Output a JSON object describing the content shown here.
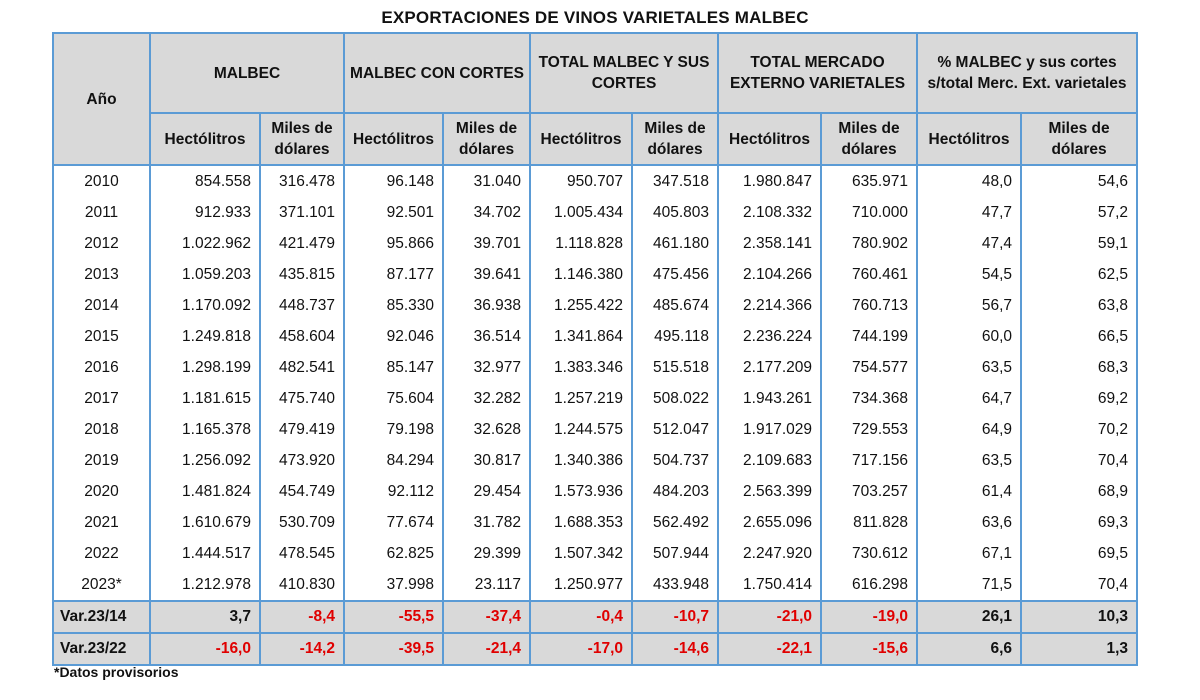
{
  "title": "EXPORTACIONES DE VINOS VARIETALES MALBEC",
  "headers": {
    "year": "Año",
    "groups": [
      "MALBEC",
      "MALBEC CON CORTES",
      "TOTAL MALBEC Y SUS CORTES",
      "TOTAL MERCADO EXTERNO VARIETALES",
      "% MALBEC y sus cortes s/total Merc. Ext. varietales"
    ],
    "sub": [
      "Hectólitros",
      "Miles de dólares",
      "Hectólitros",
      "Miles de dólares",
      "Hectólitros",
      "Miles de dólares",
      "Hectólitros",
      "Miles de dólares",
      "Hectólitros",
      "Miles de dólares"
    ]
  },
  "rows": [
    {
      "year": "2010",
      "values": [
        "854.558",
        "316.478",
        "96.148",
        "31.040",
        "950.707",
        "347.518",
        "1.980.847",
        "635.971",
        "48,0",
        "54,6"
      ]
    },
    {
      "year": "2011",
      "values": [
        "912.933",
        "371.101",
        "92.501",
        "34.702",
        "1.005.434",
        "405.803",
        "2.108.332",
        "710.000",
        "47,7",
        "57,2"
      ]
    },
    {
      "year": "2012",
      "values": [
        "1.022.962",
        "421.479",
        "95.866",
        "39.701",
        "1.118.828",
        "461.180",
        "2.358.141",
        "780.902",
        "47,4",
        "59,1"
      ]
    },
    {
      "year": "2013",
      "values": [
        "1.059.203",
        "435.815",
        "87.177",
        "39.641",
        "1.146.380",
        "475.456",
        "2.104.266",
        "760.461",
        "54,5",
        "62,5"
      ]
    },
    {
      "year": "2014",
      "values": [
        "1.170.092",
        "448.737",
        "85.330",
        "36.938",
        "1.255.422",
        "485.674",
        "2.214.366",
        "760.713",
        "56,7",
        "63,8"
      ]
    },
    {
      "year": "2015",
      "values": [
        "1.249.818",
        "458.604",
        "92.046",
        "36.514",
        "1.341.864",
        "495.118",
        "2.236.224",
        "744.199",
        "60,0",
        "66,5"
      ]
    },
    {
      "year": "2016",
      "values": [
        "1.298.199",
        "482.541",
        "85.147",
        "32.977",
        "1.383.346",
        "515.518",
        "2.177.209",
        "754.577",
        "63,5",
        "68,3"
      ]
    },
    {
      "year": "2017",
      "values": [
        "1.181.615",
        "475.740",
        "75.604",
        "32.282",
        "1.257.219",
        "508.022",
        "1.943.261",
        "734.368",
        "64,7",
        "69,2"
      ]
    },
    {
      "year": "2018",
      "values": [
        "1.165.378",
        "479.419",
        "79.198",
        "32.628",
        "1.244.575",
        "512.047",
        "1.917.029",
        "729.553",
        "64,9",
        "70,2"
      ]
    },
    {
      "year": "2019",
      "values": [
        "1.256.092",
        "473.920",
        "84.294",
        "30.817",
        "1.340.386",
        "504.737",
        "2.109.683",
        "717.156",
        "63,5",
        "70,4"
      ]
    },
    {
      "year": "2020",
      "values": [
        "1.481.824",
        "454.749",
        "92.112",
        "29.454",
        "1.573.936",
        "484.203",
        "2.563.399",
        "703.257",
        "61,4",
        "68,9"
      ]
    },
    {
      "year": "2021",
      "values": [
        "1.610.679",
        "530.709",
        "77.674",
        "31.782",
        "1.688.353",
        "562.492",
        "2.655.096",
        "811.828",
        "63,6",
        "69,3"
      ]
    },
    {
      "year": "2022",
      "values": [
        "1.444.517",
        "478.545",
        "62.825",
        "29.399",
        "1.507.342",
        "507.944",
        "2.247.920",
        "730.612",
        "67,1",
        "69,5"
      ]
    },
    {
      "year": "2023*",
      "values": [
        "1.212.978",
        "410.830",
        "37.998",
        "23.117",
        "1.250.977",
        "433.948",
        "1.750.414",
        "616.298",
        "71,5",
        "70,4"
      ]
    }
  ],
  "variations": [
    {
      "label": "Var.23/14",
      "values": [
        "3,7",
        "-8,4",
        "-55,5",
        "-37,4",
        "-0,4",
        "-10,7",
        "-21,0",
        "-19,0",
        "26,1",
        "10,3"
      ]
    },
    {
      "label": "Var.23/22",
      "values": [
        "-16,0",
        "-14,2",
        "-39,5",
        "-21,4",
        "-17,0",
        "-14,6",
        "-22,1",
        "-15,6",
        "6,6",
        "1,3"
      ]
    }
  ],
  "colors": {
    "negative": "#e00000",
    "header_bg": "#d9d9d9",
    "border": "#5b9bd5"
  },
  "footnote": "*Datos provisorios"
}
